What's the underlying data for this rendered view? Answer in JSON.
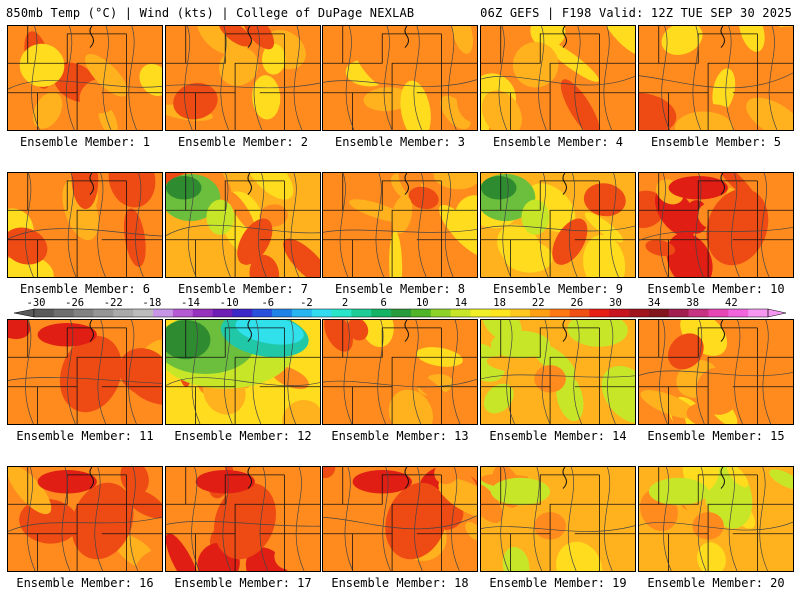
{
  "header": {
    "left": "850mb Temp (°C) | Wind (kts) | College of DuPage NEXLAB",
    "right": "06Z GEFS | F198 Valid: 12Z TUE SEP 30 2025"
  },
  "panels": [
    {
      "label": "Ensemble Member: 1",
      "style": "warm"
    },
    {
      "label": "Ensemble Member: 2",
      "style": "warm"
    },
    {
      "label": "Ensemble Member: 3",
      "style": "warm"
    },
    {
      "label": "Ensemble Member: 4",
      "style": "warm"
    },
    {
      "label": "Ensemble Member: 5",
      "style": "warm"
    },
    {
      "label": "Ensemble Member: 6",
      "style": "warm"
    },
    {
      "label": "Ensemble Member: 7",
      "style": "cool"
    },
    {
      "label": "Ensemble Member: 8",
      "style": "warm"
    },
    {
      "label": "Ensemble Member: 9",
      "style": "cool"
    },
    {
      "label": "Ensemble Member: 10",
      "style": "hot"
    },
    {
      "label": "Ensemble Member: 11",
      "style": "hot"
    },
    {
      "label": "Ensemble Member: 12",
      "style": "cold"
    },
    {
      "label": "Ensemble Member: 13",
      "style": "warm"
    },
    {
      "label": "Ensemble Member: 14",
      "style": "mild"
    },
    {
      "label": "Ensemble Member: 15",
      "style": "warm"
    },
    {
      "label": "Ensemble Member: 16",
      "style": "hot"
    },
    {
      "label": "Ensemble Member: 17",
      "style": "hot"
    },
    {
      "label": "Ensemble Member: 18",
      "style": "hot"
    },
    {
      "label": "Ensemble Member: 19",
      "style": "mild"
    },
    {
      "label": "Ensemble Member: 20",
      "style": "mild"
    }
  ],
  "colorbar": {
    "ticks": [
      "-30",
      "-26",
      "-22",
      "-18",
      "-14",
      "-10",
      "-6",
      "-2",
      "2",
      "6",
      "10",
      "14",
      "18",
      "22",
      "26",
      "30",
      "34",
      "38",
      "42"
    ],
    "colors": [
      "#5a5a5a",
      "#6e6e6e",
      "#828282",
      "#969696",
      "#aaaaaa",
      "#bcbcbc",
      "#c896e6",
      "#b45ad2",
      "#9632be",
      "#6e1eb4",
      "#3c28c8",
      "#2850dc",
      "#1e82e6",
      "#28b4f0",
      "#32dcf0",
      "#28e6c8",
      "#1ecc96",
      "#14b464",
      "#289b3c",
      "#50b428",
      "#8cd228",
      "#c8e628",
      "#f0f028",
      "#ffe61e",
      "#ffc81e",
      "#ffa014",
      "#ff7814",
      "#f05014",
      "#e61e14",
      "#c8141e",
      "#a0141e",
      "#82141e",
      "#a01e50",
      "#c83282",
      "#e646b4",
      "#f064dc",
      "#f596f0"
    ]
  },
  "palette": {
    "hot": "#ee4a14",
    "orange": "#ff8a1e",
    "amber": "#ffb21e",
    "yellow": "#ffdc1e",
    "lime": "#c8e628",
    "green": "#6cbf3c",
    "darkgreen": "#2e8b30",
    "teal": "#20c8a8",
    "cyan": "#30e0ea",
    "red": "#e01e14"
  }
}
